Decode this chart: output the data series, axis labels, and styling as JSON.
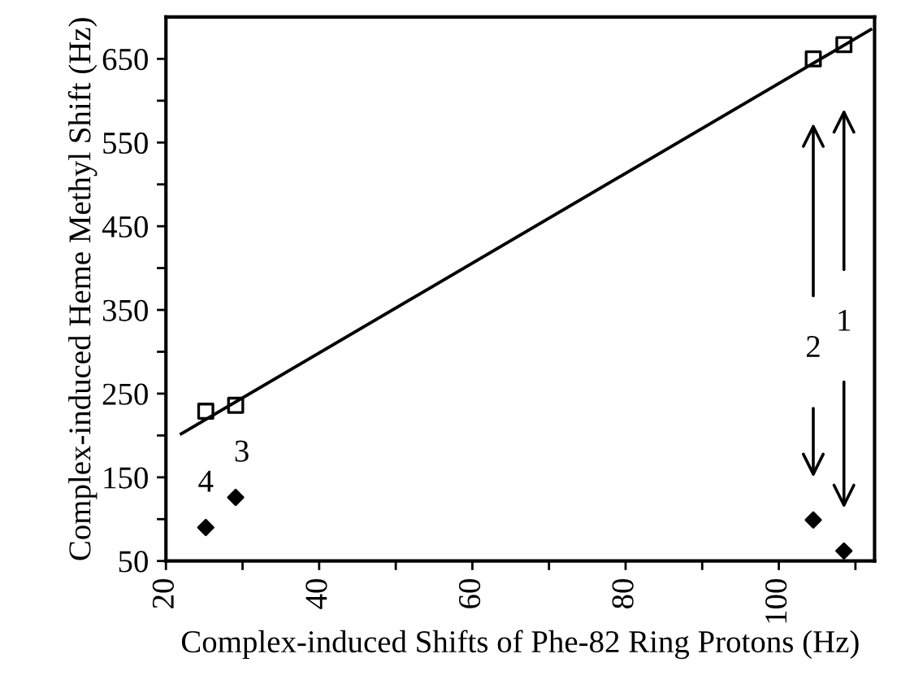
{
  "chart_data": {
    "type": "scatter",
    "xlabel": "Complex-induced Shifts of Phe-82 Ring Protons (Hz)",
    "ylabel": "Complex-induced Heme Methyl Shift (Hz)",
    "xlim": [
      20,
      112.5
    ],
    "ylim": [
      50,
      700
    ],
    "xticks": [
      20,
      {
        "value": 30,
        "label": null
      },
      40,
      {
        "value": 50,
        "label": null
      },
      60,
      {
        "value": 70,
        "label": null
      },
      80,
      {
        "value": 90,
        "label": null
      },
      100,
      {
        "value": 110,
        "label": null
      }
    ],
    "yticks": [
      50,
      {
        "value": 100,
        "label": null
      },
      150,
      {
        "value": 200,
        "label": null
      },
      250,
      {
        "value": 300,
        "label": null
      },
      350,
      {
        "value": 400,
        "label": null
      },
      450,
      {
        "value": 500,
        "label": null
      },
      550,
      {
        "value": 600,
        "label": null
      },
      650
    ],
    "grid": false,
    "series": [
      {
        "marker": "square",
        "color": "#000000",
        "x": [
          25.2,
          29.1,
          104.5,
          108.5
        ],
        "values": [
          229,
          236,
          650,
          667
        ]
      },
      {
        "marker": "diamond",
        "color": "#000000",
        "x": [
          25.2,
          29.1,
          104.5,
          108.5
        ],
        "values": [
          90,
          126,
          99,
          62
        ]
      },
      {
        "type": "line",
        "marker": "none",
        "color": "#000000",
        "x": [
          22,
          112
        ],
        "values": [
          202,
          685
        ]
      }
    ],
    "annotations": [
      "1",
      "2",
      "3",
      "4"
    ]
  }
}
